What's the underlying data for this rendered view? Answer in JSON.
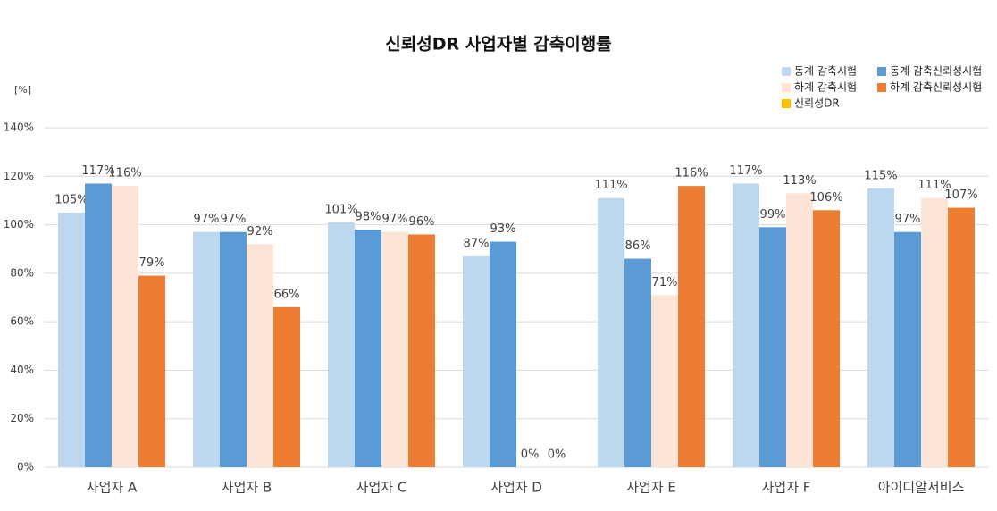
{
  "chart_data": {
    "type": "bar",
    "title": "신뢰성DR 사업자별 감축이행률",
    "y_label": "[%]",
    "categories": [
      "사업자 A",
      "사업자 B",
      "사업자 C",
      "사업자 D",
      "사업자 E",
      "사업자 F",
      "아이디알서비스"
    ],
    "series": [
      {
        "name": "동계 감축시험",
        "color": "#bdd7ee",
        "values": [
          105,
          97,
          101,
          87,
          111,
          117,
          115
        ],
        "value_labels": [
          "105%",
          "97%",
          "101%",
          "87%",
          "111%",
          "117%",
          "115%"
        ]
      },
      {
        "name": "동계 감축신뢰성시험",
        "color": "#5b9bd5",
        "values": [
          117,
          97,
          98,
          93,
          86,
          99,
          97
        ],
        "value_labels": [
          "117%",
          "97%",
          "98%",
          "93%",
          "86%",
          "99%",
          "97%"
        ]
      },
      {
        "name": "하계 감축시험",
        "color": "#fce4d6",
        "values": [
          116,
          92,
          97,
          0,
          71,
          113,
          111
        ],
        "value_labels": [
          "116%",
          "92%",
          "97%",
          "0%",
          "71%",
          "113%",
          "111%"
        ]
      },
      {
        "name": "하계 감축신뢰성시험",
        "color": "#ed7d31",
        "values": [
          79,
          66,
          96,
          0,
          116,
          106,
          107
        ],
        "value_labels": [
          "79%",
          "66%",
          "96%",
          "0%",
          "116%",
          "106%",
          "107%"
        ]
      },
      {
        "name": "신뢰성DR",
        "color": "#ffc000",
        "values": [
          null,
          null,
          null,
          null,
          null,
          null,
          null
        ]
      }
    ],
    "ylim": [
      0,
      140
    ],
    "yticks": [
      {
        "value": 0,
        "label": "0%"
      },
      {
        "value": 20,
        "label": "20%"
      },
      {
        "value": 40,
        "label": "40%"
      },
      {
        "value": 60,
        "label": "60%"
      },
      {
        "value": 80,
        "label": "80%"
      },
      {
        "value": 100,
        "label": "100%"
      },
      {
        "value": 120,
        "label": "120%"
      },
      {
        "value": 140,
        "label": "140%"
      }
    ],
    "grid": true,
    "legend": "top-right"
  }
}
